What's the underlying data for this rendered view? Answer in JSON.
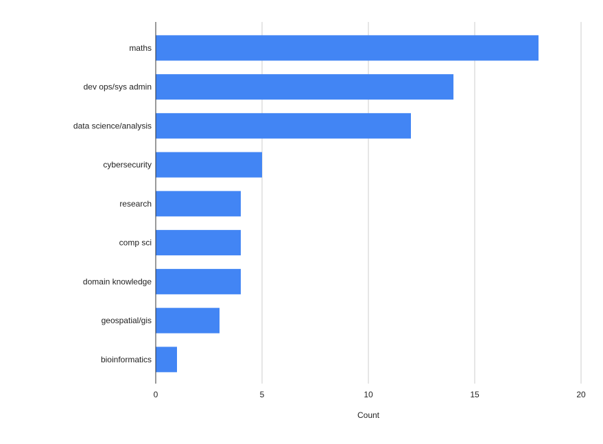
{
  "chart_data": {
    "type": "bar",
    "orientation": "horizontal",
    "categories": [
      "maths",
      "dev ops/sys admin",
      "data science/analysis",
      "cybersecurity",
      "research",
      "comp sci",
      "domain knowledge",
      "geospatial/gis",
      "bioinformatics"
    ],
    "values": [
      18,
      14,
      12,
      5,
      4,
      4,
      4,
      3,
      1
    ],
    "xlabel": "Count",
    "ylabel": "",
    "xlim": [
      0,
      20
    ],
    "xticks": [
      "0",
      "5",
      "10",
      "15",
      "20"
    ],
    "grid": true,
    "legend": "none",
    "bar_color": "#4285f4",
    "grid_color": "#cccccc",
    "axis_color": "#333333"
  }
}
